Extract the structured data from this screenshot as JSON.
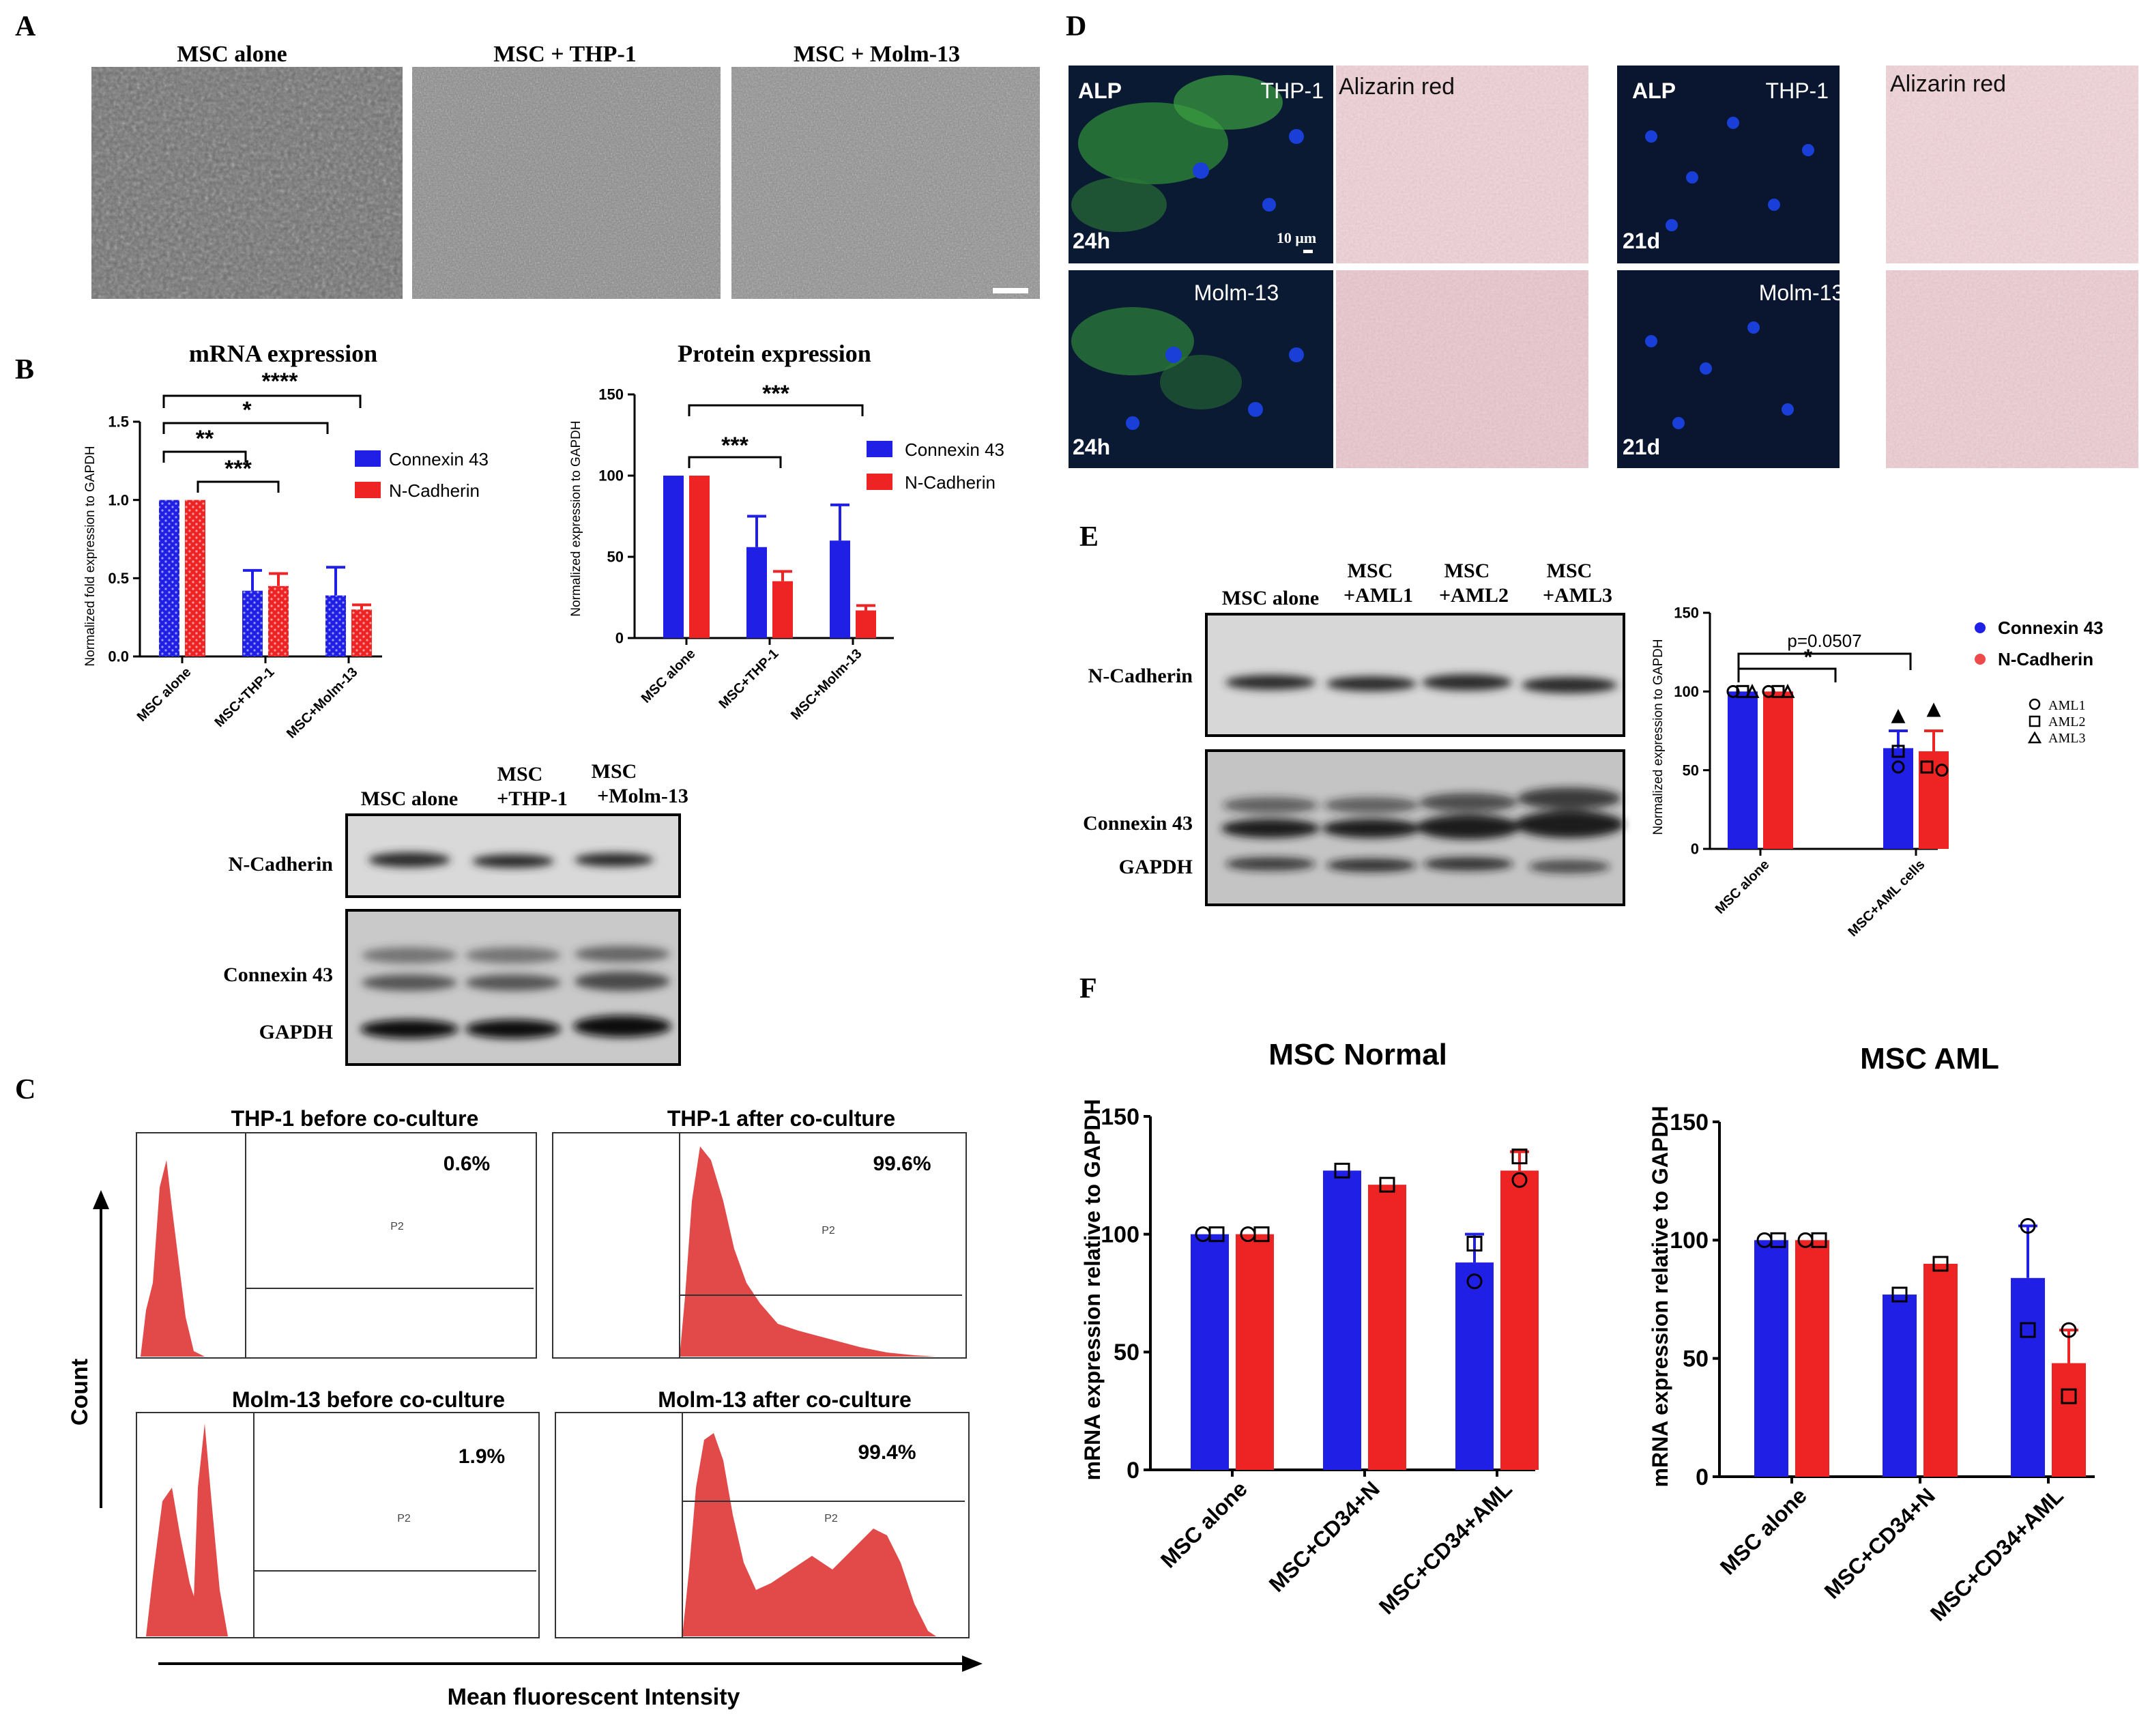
{
  "panels": {
    "A": "A",
    "B": "B",
    "C": "C",
    "D": "D",
    "E": "E",
    "F": "F"
  },
  "panel_a": {
    "titles": [
      "MSC alone",
      "MSC + THP-1",
      "MSC + Molm-13"
    ]
  },
  "panel_b": {
    "mrna": {
      "chart_data": {
        "type": "bar",
        "title": "mRNA expression",
        "ylabel": "Normalized fold expression to GAPDH",
        "categories": [
          "MSC alone",
          "MSC+THP-1",
          "MSC+Molm-13"
        ],
        "series": [
          {
            "name": "Connexin 43",
            "values": [
              1.0,
              0.42,
              0.39
            ],
            "errors": [
              0,
              0.13,
              0.18
            ]
          },
          {
            "name": "N-Cadherin",
            "values": [
              1.0,
              0.45,
              0.3
            ],
            "errors": [
              0,
              0.08,
              0.03
            ]
          }
        ],
        "ylim": [
          0,
          1.5
        ],
        "yticks": [
          "0.0",
          "0.5",
          "1.0",
          "1.5"
        ],
        "significance": [
          "****",
          "*",
          "**",
          "***"
        ]
      }
    },
    "protein": {
      "chart_data": {
        "type": "bar",
        "title": "Protein expression",
        "ylabel": "Normalized expression to GAPDH",
        "categories": [
          "MSC alone",
          "MSC+THP-1",
          "MSC+Molm-13"
        ],
        "series": [
          {
            "name": "Connexin 43",
            "values": [
              100,
              56,
              60
            ],
            "errors": [
              0,
              19,
              22
            ]
          },
          {
            "name": "N-Cadherin",
            "values": [
              100,
              35,
              17
            ],
            "errors": [
              0,
              6,
              3
            ]
          }
        ],
        "ylim": [
          0,
          150
        ],
        "yticks": [
          "0",
          "50",
          "100",
          "150"
        ],
        "significance": [
          "***",
          "***"
        ]
      }
    },
    "blot": {
      "lanes": [
        "MSC alone",
        "MSC",
        "+THP-1",
        "MSC",
        "+Molm-13"
      ],
      "rows": [
        "N-Cadherin",
        "Connexin 43",
        "GAPDH"
      ]
    }
  },
  "panel_c": {
    "titles": [
      "THP-1 before co-culture",
      "THP-1 after co-culture",
      "Molm-13 before co-culture",
      "Molm-13 after co-culture"
    ],
    "percents": [
      "0.6%",
      "99.6%",
      "1.9%",
      "99.4%"
    ],
    "gate": "P2",
    "ylabel": "Count",
    "xlabel": "Mean fluorescent Intensity"
  },
  "panel_d": {
    "alp": "ALP",
    "alizarin": "Alizarin red",
    "cells": [
      "THP-1",
      "Molm-13",
      "THP-1",
      "Molm-13"
    ],
    "times": [
      "24h",
      "24h",
      "21d",
      "21d"
    ],
    "scale": "10 μm"
  },
  "panel_e": {
    "blot": {
      "lanes": [
        "MSC alone",
        "MSC",
        "+AML1",
        "MSC",
        "+AML2",
        "MSC",
        "+AML3"
      ],
      "rows": [
        "N-Cadherin",
        "Connexin 43",
        "GAPDH"
      ]
    },
    "chart_data": {
      "type": "bar",
      "ylabel": "Normalized expression to GAPDH",
      "categories": [
        "MSC alone",
        "MSC+AML cells"
      ],
      "series": [
        {
          "name": "Connexin 43",
          "values": [
            100,
            64
          ],
          "errors": [
            0,
            11
          ]
        },
        {
          "name": "N-Cadherin",
          "values": [
            100,
            62
          ],
          "errors": [
            0,
            13
          ]
        }
      ],
      "ylim": [
        0,
        150
      ],
      "yticks": [
        "0",
        "50",
        "100",
        "150"
      ],
      "annotations": [
        "p=0.0507",
        "*"
      ],
      "samples": [
        "AML1",
        "AML2",
        "AML3"
      ]
    }
  },
  "panel_f": {
    "charts": [
      {
        "type": "bar",
        "title": "MSC Normal",
        "ylabel": "mRNA expression relative to GAPDH",
        "categories": [
          "MSC alone",
          "MSC+CD34+N",
          "MSC+CD34+AML"
        ],
        "series": [
          {
            "values": [
              100,
              127,
              88
            ],
            "errors": [
              0,
              0,
              12
            ]
          },
          {
            "values": [
              100,
              121,
              127
            ],
            "errors": [
              0,
              0,
              8
            ]
          }
        ],
        "ylim": [
          0,
          150
        ],
        "yticks": [
          "0",
          "50",
          "100",
          "150"
        ]
      },
      {
        "type": "bar",
        "title": "MSC AML",
        "ylabel": "mRNA expression relative to GAPDH",
        "categories": [
          "MSC alone",
          "MSC+CD34+N",
          "MSC+CD34+AML"
        ],
        "series": [
          {
            "values": [
              100,
              77,
              84
            ],
            "errors": [
              0,
              0,
              22
            ]
          },
          {
            "values": [
              100,
              90,
              48
            ],
            "errors": [
              0,
              0,
              14
            ]
          }
        ],
        "ylim": [
          0,
          150
        ],
        "yticks": [
          "0",
          "50",
          "100",
          "150"
        ]
      }
    ]
  },
  "colors": {
    "blue": "#1f1fe6",
    "red": "#ee2424",
    "pink": "#f2a3a3",
    "fluor_red": "#e24a4a"
  }
}
